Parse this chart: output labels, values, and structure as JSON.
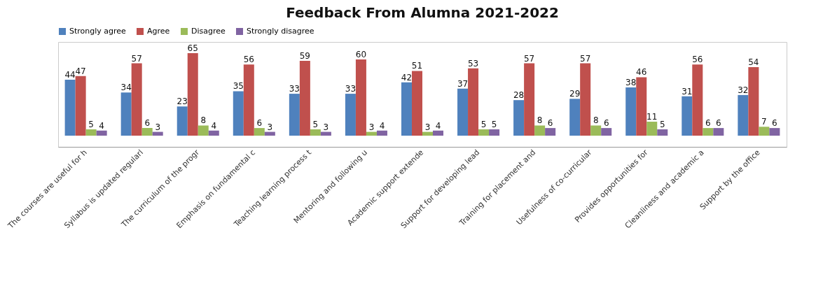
{
  "chart_data": {
    "type": "bar",
    "title": "Feedback From Alumna 2021-2022",
    "categories": [
      "The courses are useful for h",
      "Syllabus is updated regularl",
      "The curriculum of the progr",
      "Emphasis on fundamental c",
      "Teaching learning process t",
      "Mentoring and following u",
      "Academic support extende",
      "Support for developing lead",
      "Training for placement and",
      "Usefulness of co-curricular",
      "Provides opportunities for",
      "Cleanliness and academic a",
      "Support by the office"
    ],
    "series": [
      {
        "name": "Strongly agree",
        "color": "#4f81bd",
        "values": [
          44,
          34,
          23,
          35,
          33,
          33,
          42,
          37,
          28,
          29,
          38,
          31,
          32
        ]
      },
      {
        "name": "Agree",
        "color": "#c0504d",
        "values": [
          47,
          57,
          65,
          56,
          59,
          60,
          51,
          53,
          57,
          57,
          46,
          56,
          54
        ]
      },
      {
        "name": "Disagree",
        "color": "#9bbb59",
        "values": [
          5,
          6,
          8,
          6,
          5,
          3,
          3,
          5,
          8,
          8,
          11,
          6,
          7
        ]
      },
      {
        "name": "Strongly disagree",
        "color": "#8064a2",
        "values": [
          4,
          3,
          4,
          3,
          3,
          4,
          4,
          5,
          6,
          6,
          5,
          6,
          6
        ]
      }
    ],
    "data_labels": true,
    "legend": "top"
  }
}
